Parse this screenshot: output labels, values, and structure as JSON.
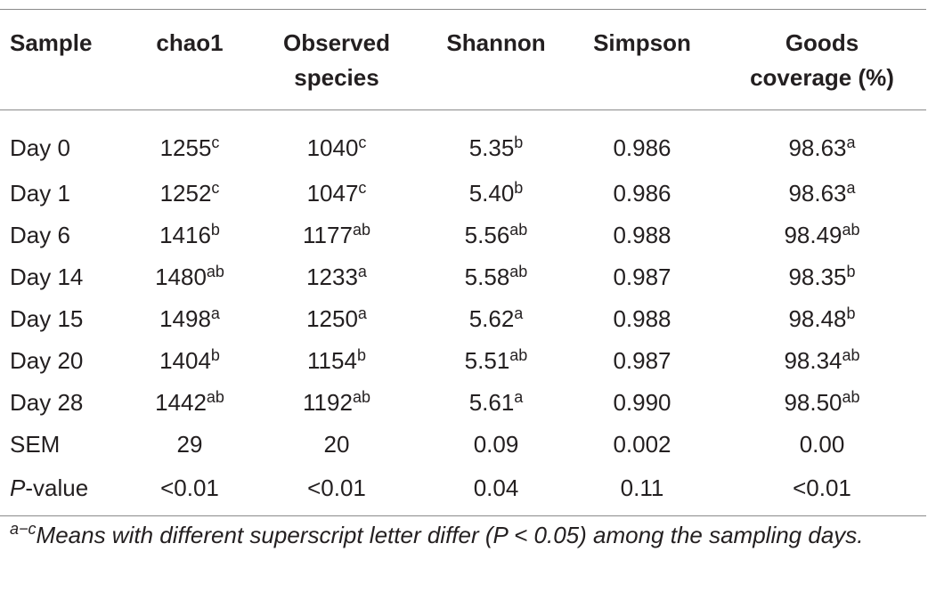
{
  "table": {
    "headers": [
      {
        "line1": "Sample",
        "line2": ""
      },
      {
        "line1": "chao1",
        "line2": ""
      },
      {
        "line1": "Observed",
        "line2": "species"
      },
      {
        "line1": "Shannon",
        "line2": ""
      },
      {
        "line1": "Simpson",
        "line2": ""
      },
      {
        "line1": "Goods",
        "line2": "coverage (%)"
      }
    ],
    "rows": [
      {
        "sample": "Day 0",
        "chao1": {
          "v": "1255",
          "s": "c"
        },
        "observed": {
          "v": "1040",
          "s": "c"
        },
        "shannon": {
          "v": "5.35",
          "s": "b"
        },
        "simpson": {
          "v": "0.986",
          "s": ""
        },
        "goods": {
          "v": "98.63",
          "s": "a"
        }
      },
      {
        "sample": "Day 1",
        "chao1": {
          "v": "1252",
          "s": "c"
        },
        "observed": {
          "v": "1047",
          "s": "c"
        },
        "shannon": {
          "v": "5.40",
          "s": "b"
        },
        "simpson": {
          "v": "0.986",
          "s": ""
        },
        "goods": {
          "v": "98.63",
          "s": "a"
        }
      },
      {
        "sample": "Day 6",
        "chao1": {
          "v": "1416",
          "s": "b"
        },
        "observed": {
          "v": "1177",
          "s": "ab"
        },
        "shannon": {
          "v": "5.56",
          "s": "ab"
        },
        "simpson": {
          "v": "0.988",
          "s": ""
        },
        "goods": {
          "v": "98.49",
          "s": "ab"
        }
      },
      {
        "sample": "Day 14",
        "chao1": {
          "v": "1480",
          "s": "ab"
        },
        "observed": {
          "v": "1233",
          "s": "a"
        },
        "shannon": {
          "v": "5.58",
          "s": "ab"
        },
        "simpson": {
          "v": "0.987",
          "s": ""
        },
        "goods": {
          "v": "98.35",
          "s": "b"
        }
      },
      {
        "sample": "Day 15",
        "chao1": {
          "v": "1498",
          "s": "a"
        },
        "observed": {
          "v": "1250",
          "s": "a"
        },
        "shannon": {
          "v": "5.62",
          "s": "a"
        },
        "simpson": {
          "v": "0.988",
          "s": ""
        },
        "goods": {
          "v": "98.48",
          "s": "b"
        }
      },
      {
        "sample": "Day 20",
        "chao1": {
          "v": "1404",
          "s": "b"
        },
        "observed": {
          "v": "1154",
          "s": "b"
        },
        "shannon": {
          "v": "5.51",
          "s": "ab"
        },
        "simpson": {
          "v": "0.987",
          "s": ""
        },
        "goods": {
          "v": "98.34",
          "s": "ab"
        }
      },
      {
        "sample": "Day 28",
        "chao1": {
          "v": "1442",
          "s": "ab"
        },
        "observed": {
          "v": "1192",
          "s": "ab"
        },
        "shannon": {
          "v": "5.61",
          "s": "a"
        },
        "simpson": {
          "v": "0.990",
          "s": ""
        },
        "goods": {
          "v": "98.50",
          "s": "ab"
        }
      },
      {
        "sample": "SEM",
        "chao1": {
          "v": "29",
          "s": ""
        },
        "observed": {
          "v": "20",
          "s": ""
        },
        "shannon": {
          "v": "0.09",
          "s": ""
        },
        "simpson": {
          "v": "0.002",
          "s": ""
        },
        "goods": {
          "v": "0.00",
          "s": ""
        }
      }
    ],
    "pvalue_row": {
      "label_italic": "P",
      "label_rest": "-value",
      "chao1": "<0.01",
      "observed": "<0.01",
      "shannon": "0.04",
      "simpson": "0.11",
      "goods": "<0.01"
    }
  },
  "footnote": {
    "superscript": "a−c",
    "text": "Means with different superscript letter differ (P < 0.05) among the sampling days."
  }
}
